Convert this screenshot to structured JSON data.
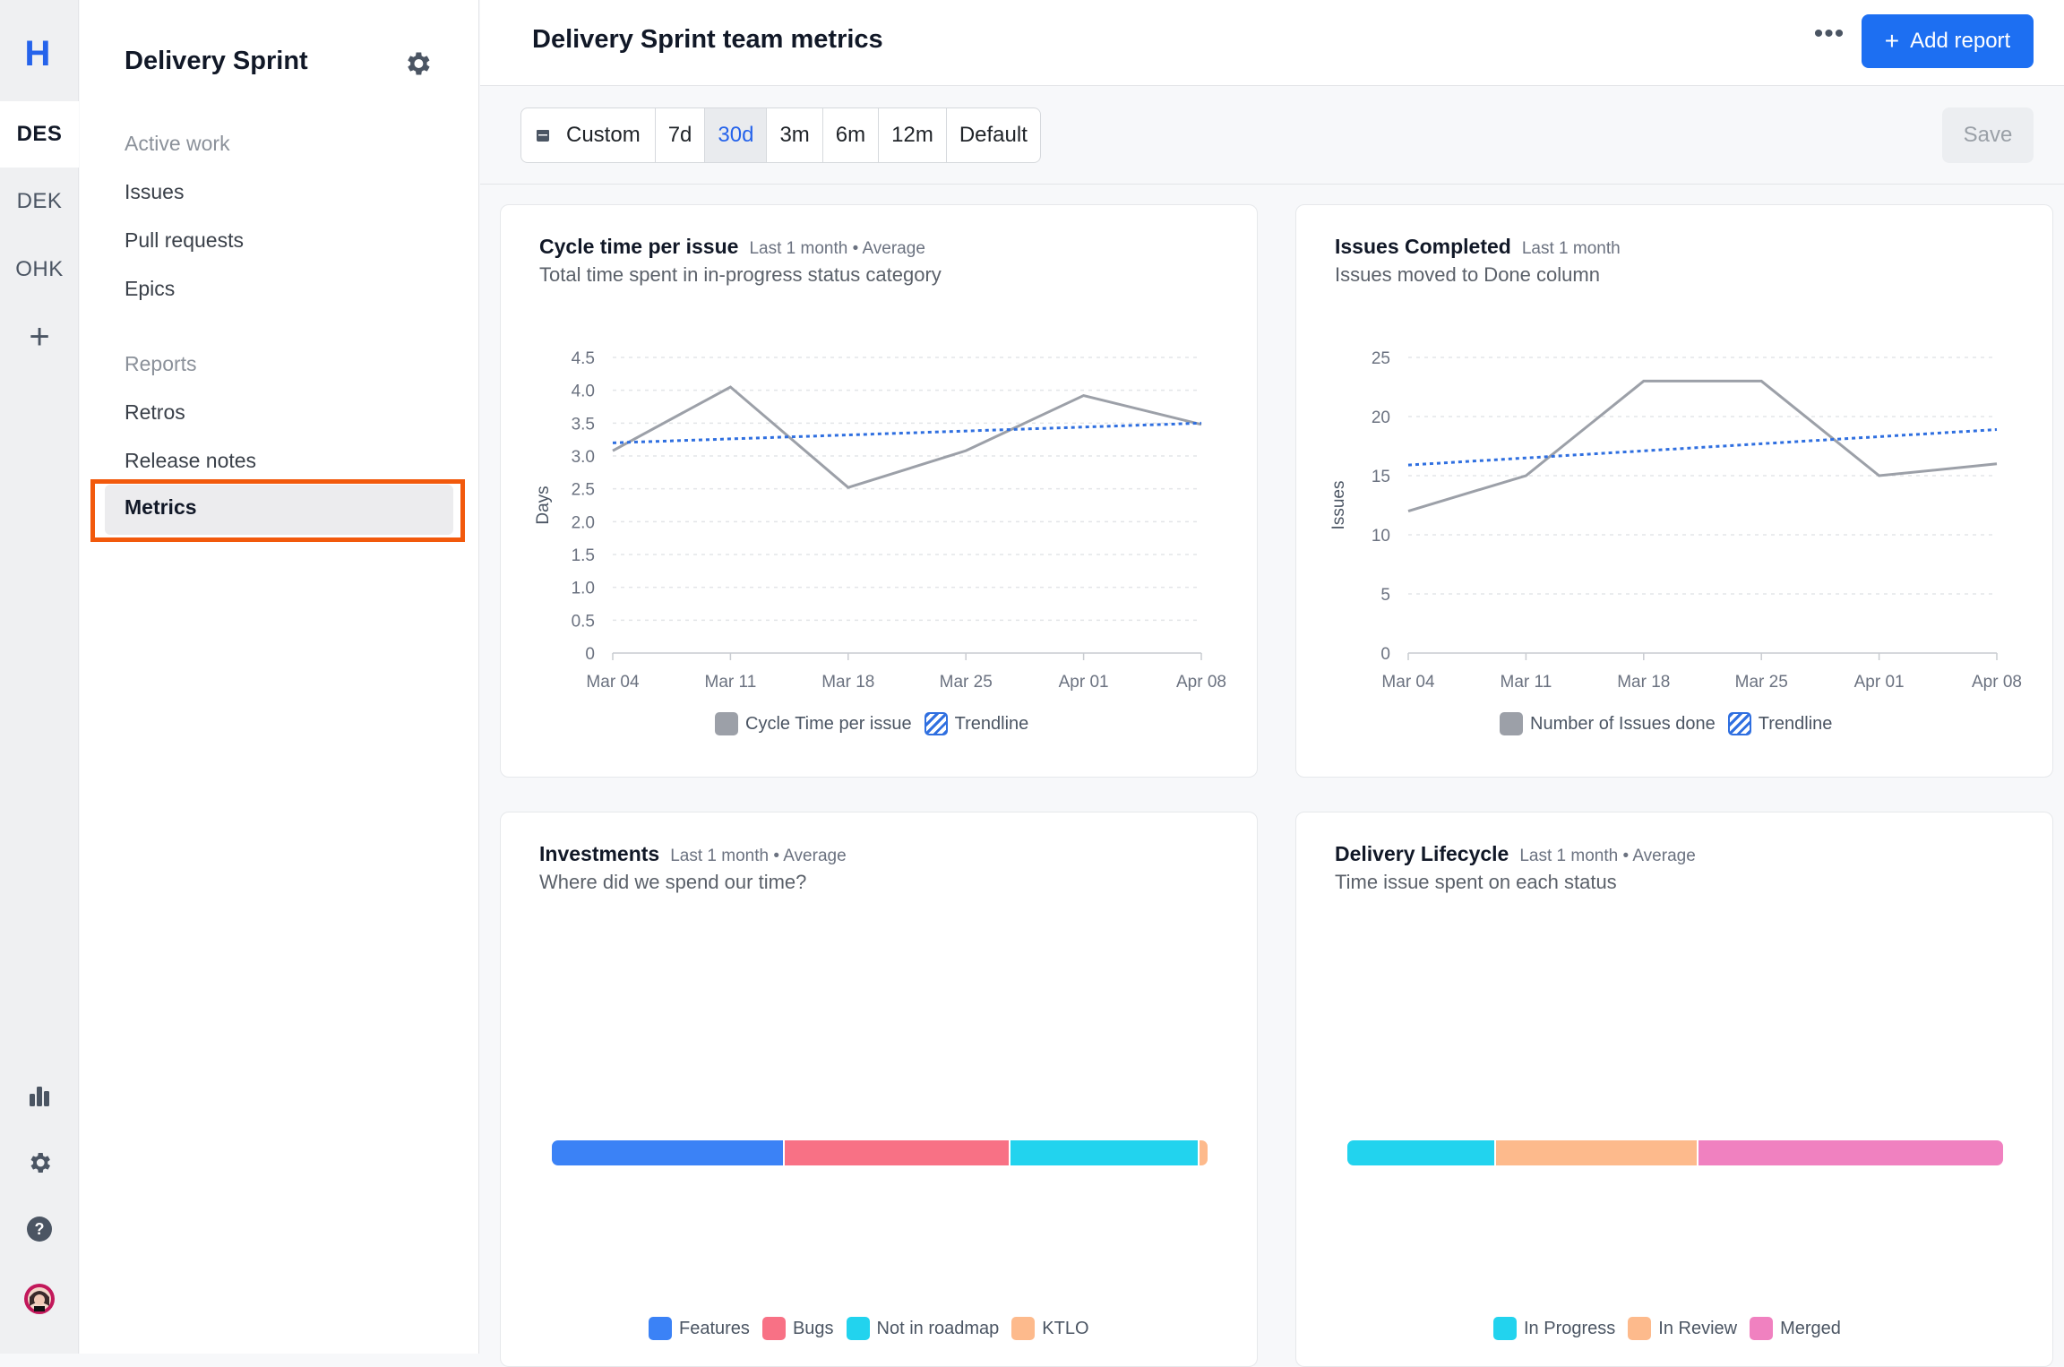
{
  "rail": {
    "logo": "H",
    "workspaces": [
      "DES",
      "DEK",
      "OHK"
    ],
    "add": "+"
  },
  "sidebar": {
    "title": "Delivery Sprint",
    "active_work_label": "Active work",
    "active_work": [
      "Issues",
      "Pull requests",
      "Epics"
    ],
    "reports_label": "Reports",
    "reports": [
      "Retros",
      "Release notes"
    ],
    "selected": "Metrics"
  },
  "header": {
    "title": "Delivery Sprint team metrics",
    "more": "•••",
    "add_report": "Add report",
    "add_icon": "+"
  },
  "filters": {
    "ranges": [
      "Custom",
      "7d",
      "30d",
      "3m",
      "6m",
      "12m",
      "Default"
    ],
    "selected": "30d",
    "save": "Save"
  },
  "cards": {
    "cycle": {
      "title": "Cycle time per issue",
      "meta": "Last 1 month • Average",
      "subtitle": "Total time spent in in-progress status category"
    },
    "issues": {
      "title": "Issues Completed",
      "meta": "Last 1 month",
      "subtitle": "Issues moved to Done column"
    },
    "invest": {
      "title": "Investments",
      "meta": "Last 1 month • Average",
      "subtitle": "Where did we spend our time?",
      "legend": [
        "Features",
        "Bugs",
        "Not in roadmap",
        "KTLO"
      ]
    },
    "lifecycle": {
      "title": "Delivery Lifecycle",
      "meta": "Last 1 month • Average",
      "subtitle": "Time issue spent on each status",
      "legend": [
        "In Progress",
        "In Review",
        "Merged"
      ]
    }
  },
  "colors": {
    "accent": "#1d6ff2",
    "highlight": "#f2590c",
    "series": "#9ca0a8",
    "trend": "#2f6fe0",
    "features": "#3b82f6",
    "bugs": "#f87185",
    "not_in_roadmap": "#22d3ee",
    "ktlo": "#fdba8c",
    "in_progress": "#22d3ee",
    "in_review": "#fdba8c",
    "merged": "#f081c0"
  },
  "chart_data": [
    {
      "type": "line",
      "x": [
        "Mar 04",
        "Mar 11",
        "Mar 18",
        "Mar 25",
        "Apr 01",
        "Apr 08"
      ],
      "series": [
        {
          "name": "Cycle Time per issue",
          "values": [
            3.08,
            4.05,
            2.52,
            3.08,
            3.92,
            3.48
          ]
        },
        {
          "name": "Trendline",
          "values": [
            3.2,
            3.26,
            3.32,
            3.38,
            3.44,
            3.5
          ],
          "dashed": true
        }
      ],
      "ylabel": "Days",
      "yticks": [
        "0",
        "0.5",
        "1.0",
        "1.5",
        "2.0",
        "2.5",
        "3.0",
        "3.5",
        "4.0",
        "4.5"
      ],
      "ylim": [
        0,
        4.5
      ],
      "grid": true,
      "legend": "bottom"
    },
    {
      "type": "line",
      "x": [
        "Mar 04",
        "Mar 11",
        "Mar 18",
        "Mar 25",
        "Apr 01",
        "Apr 08"
      ],
      "series": [
        {
          "name": "Number of Issues done",
          "values": [
            12,
            15,
            23,
            23,
            15,
            16
          ]
        },
        {
          "name": "Trendline",
          "values": [
            15.9,
            16.5,
            17.1,
            17.7,
            18.3,
            18.9
          ],
          "dashed": true
        }
      ],
      "ylabel": "Issues",
      "yticks": [
        "0",
        "5",
        "10",
        "15",
        "20",
        "25"
      ],
      "ylim": [
        0,
        25
      ],
      "grid": true,
      "legend": "bottom"
    },
    {
      "type": "bar",
      "stacked": true,
      "categories": [
        "Features",
        "Bugs",
        "Not in roadmap",
        "KTLO"
      ],
      "values": [
        35.5,
        34.5,
        28.8,
        1.2
      ],
      "legend": "bottom"
    },
    {
      "type": "bar",
      "stacked": true,
      "categories": [
        "In Progress",
        "In Review",
        "Merged"
      ],
      "values": [
        22.7,
        30.8,
        46.5
      ],
      "legend": "bottom"
    }
  ]
}
